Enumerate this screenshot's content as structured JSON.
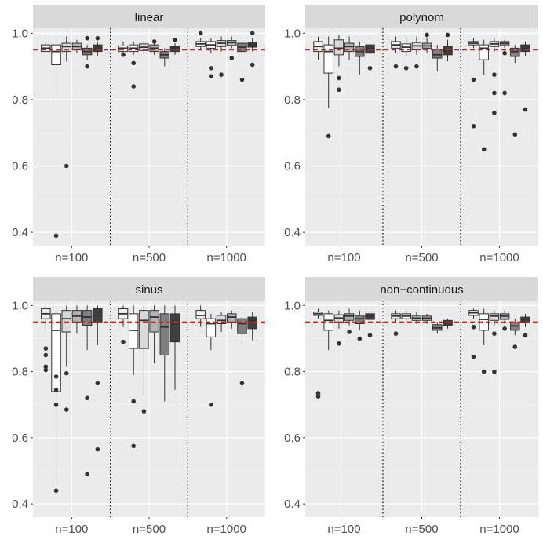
{
  "chart_data": {
    "type": "boxplot",
    "layout": "2x2 facet grid",
    "y_breaks": [
      "0.4",
      "0.6",
      "0.8",
      "1.0"
    ],
    "ylim": [
      0.36,
      1.015
    ],
    "reference_line": {
      "y": 0.95,
      "style": "dashed",
      "color": "#dd1c1c"
    },
    "box_fills": [
      "#f2f2f2",
      "#ffffff",
      "#d9d9d9",
      "#b3b3b3",
      "#7f7f7f",
      "#3f3f3f"
    ],
    "sample_sizes": [
      "n=100",
      "n=500",
      "n=1000"
    ],
    "panels": [
      {
        "title": "linear",
        "groups": [
          {
            "label": "n=100",
            "boxes": [
              {
                "q1": 0.945,
                "med": 0.955,
                "q3": 0.965,
                "lo": 0.94,
                "hi": 0.975,
                "out": []
              },
              {
                "q1": 0.905,
                "med": 0.945,
                "q3": 0.965,
                "lo": 0.815,
                "hi": 0.985,
                "out": [
                  0.39
                ]
              },
              {
                "q1": 0.945,
                "med": 0.96,
                "q3": 0.97,
                "lo": 0.915,
                "hi": 0.99,
                "out": [
                  0.6
                ]
              },
              {
                "q1": 0.95,
                "med": 0.96,
                "q3": 0.97,
                "lo": 0.94,
                "hi": 0.98,
                "out": []
              },
              {
                "q1": 0.935,
                "med": 0.945,
                "q3": 0.955,
                "lo": 0.92,
                "hi": 0.965,
                "out": [
                  0.985,
                  0.9
                ]
              },
              {
                "q1": 0.945,
                "med": 0.955,
                "q3": 0.965,
                "lo": 0.93,
                "hi": 0.975,
                "out": [
                  0.985
                ]
              }
            ]
          },
          {
            "label": "n=500",
            "boxes": [
              {
                "q1": 0.945,
                "med": 0.955,
                "q3": 0.962,
                "lo": 0.935,
                "hi": 0.975,
                "out": [
                  0.935
                ]
              },
              {
                "q1": 0.945,
                "med": 0.955,
                "q3": 0.965,
                "lo": 0.935,
                "hi": 0.975,
                "out": [
                  0.91,
                  0.84
                ]
              },
              {
                "q1": 0.948,
                "med": 0.958,
                "q3": 0.968,
                "lo": 0.935,
                "hi": 0.978,
                "out": []
              },
              {
                "q1": 0.945,
                "med": 0.955,
                "q3": 0.965,
                "lo": 0.935,
                "hi": 0.975,
                "out": [
                  0.975
                ]
              },
              {
                "q1": 0.925,
                "med": 0.935,
                "q3": 0.945,
                "lo": 0.9,
                "hi": 0.955,
                "out": []
              },
              {
                "q1": 0.945,
                "med": 0.955,
                "q3": 0.96,
                "lo": 0.935,
                "hi": 0.97,
                "out": [
                  0.98
                ]
              }
            ]
          },
          {
            "label": "n=1000",
            "boxes": [
              {
                "q1": 0.96,
                "med": 0.968,
                "q3": 0.975,
                "lo": 0.95,
                "hi": 0.985,
                "out": [
                  1.0
                ]
              },
              {
                "q1": 0.955,
                "med": 0.965,
                "q3": 0.975,
                "lo": 0.94,
                "hi": 0.985,
                "out": [
                  0.895,
                  0.87
                ]
              },
              {
                "q1": 0.96,
                "med": 0.97,
                "q3": 0.978,
                "lo": 0.945,
                "hi": 0.99,
                "out": [
                  0.875
                ]
              },
              {
                "q1": 0.963,
                "med": 0.972,
                "q3": 0.978,
                "lo": 0.955,
                "hi": 0.99,
                "out": [
                  0.925
                ]
              },
              {
                "q1": 0.945,
                "med": 0.958,
                "q3": 0.97,
                "lo": 0.93,
                "hi": 0.985,
                "out": [
                  0.86
                ]
              },
              {
                "q1": 0.958,
                "med": 0.965,
                "q3": 0.972,
                "lo": 0.945,
                "hi": 0.985,
                "out": [
                  0.905,
                  1.0
                ]
              }
            ]
          }
        ]
      },
      {
        "title": "polynom",
        "groups": [
          {
            "label": "n=100",
            "boxes": [
              {
                "q1": 0.945,
                "med": 0.96,
                "q3": 0.975,
                "lo": 0.92,
                "hi": 0.99,
                "out": []
              },
              {
                "q1": 0.88,
                "med": 0.945,
                "q3": 0.965,
                "lo": 0.775,
                "hi": 0.99,
                "out": [
                  0.69
                ]
              },
              {
                "q1": 0.935,
                "med": 0.955,
                "q3": 0.98,
                "lo": 0.9,
                "hi": 0.995,
                "out": [
                  0.865,
                  0.83
                ]
              },
              {
                "q1": 0.945,
                "med": 0.96,
                "q3": 0.97,
                "lo": 0.92,
                "hi": 0.99,
                "out": []
              },
              {
                "q1": 0.93,
                "med": 0.945,
                "q3": 0.96,
                "lo": 0.875,
                "hi": 0.975,
                "out": []
              },
              {
                "q1": 0.94,
                "med": 0.955,
                "q3": 0.965,
                "lo": 0.92,
                "hi": 0.985,
                "out": [
                  0.895
                ]
              }
            ]
          },
          {
            "label": "n=500",
            "boxes": [
              {
                "q1": 0.955,
                "med": 0.965,
                "q3": 0.975,
                "lo": 0.94,
                "hi": 0.99,
                "out": [
                  0.9
                ]
              },
              {
                "q1": 0.945,
                "med": 0.958,
                "q3": 0.968,
                "lo": 0.93,
                "hi": 0.985,
                "out": [
                  0.895
                ]
              },
              {
                "q1": 0.95,
                "med": 0.962,
                "q3": 0.972,
                "lo": 0.935,
                "hi": 0.99,
                "out": [
                  0.9
                ]
              },
              {
                "q1": 0.955,
                "med": 0.962,
                "q3": 0.97,
                "lo": 0.94,
                "hi": 0.985,
                "out": [
                  0.995
                ]
              },
              {
                "q1": 0.925,
                "med": 0.935,
                "q3": 0.952,
                "lo": 0.885,
                "hi": 0.965,
                "out": []
              },
              {
                "q1": 0.935,
                "med": 0.948,
                "q3": 0.96,
                "lo": 0.915,
                "hi": 0.98,
                "out": [
                  0.995
                ]
              }
            ]
          },
          {
            "label": "n=1000",
            "boxes": [
              {
                "q1": 0.965,
                "med": 0.97,
                "q3": 0.975,
                "lo": 0.955,
                "hi": 0.985,
                "out": [
                  0.86,
                  0.72
                ]
              },
              {
                "q1": 0.92,
                "med": 0.955,
                "q3": 0.965,
                "lo": 0.875,
                "hi": 0.98,
                "out": [
                  0.65
                ]
              },
              {
                "q1": 0.96,
                "med": 0.968,
                "q3": 0.975,
                "lo": 0.945,
                "hi": 0.985,
                "out": [
                  0.875,
                  0.82,
                  0.76
                ]
              },
              {
                "q1": 0.965,
                "med": 0.97,
                "q3": 0.975,
                "lo": 0.955,
                "hi": 0.98,
                "out": [
                  0.82,
                  0.94
                ]
              },
              {
                "q1": 0.93,
                "med": 0.945,
                "q3": 0.955,
                "lo": 0.91,
                "hi": 0.965,
                "out": [
                  0.695
                ]
              },
              {
                "q1": 0.945,
                "med": 0.955,
                "q3": 0.965,
                "lo": 0.93,
                "hi": 0.975,
                "out": [
                  0.77
                ]
              }
            ]
          }
        ]
      },
      {
        "title": "sinus",
        "groups": [
          {
            "label": "n=100",
            "boxes": [
              {
                "q1": 0.96,
                "med": 0.975,
                "q3": 0.99,
                "lo": 0.93,
                "hi": 1.0,
                "out": [
                  0.87,
                  0.85,
                  0.815,
                  0.805
                ]
              },
              {
                "q1": 0.74,
                "med": 0.925,
                "q3": 0.975,
                "lo": 0.455,
                "hi": 1.0,
                "out": [
                  0.785,
                  0.745,
                  0.7,
                  0.44
                ]
              },
              {
                "q1": 0.92,
                "med": 0.96,
                "q3": 0.985,
                "lo": 0.815,
                "hi": 1.0,
                "out": [
                  0.795,
                  0.685
                ]
              },
              {
                "q1": 0.95,
                "med": 0.968,
                "q3": 0.985,
                "lo": 0.915,
                "hi": 1.0,
                "out": []
              },
              {
                "q1": 0.94,
                "med": 0.965,
                "q3": 0.985,
                "lo": 0.865,
                "hi": 1.0,
                "out": [
                  0.72,
                  0.49
                ]
              },
              {
                "q1": 0.95,
                "med": 0.97,
                "q3": 0.99,
                "lo": 0.88,
                "hi": 1.0,
                "out": [
                  0.765,
                  0.565
                ]
              }
            ]
          },
          {
            "label": "n=500",
            "boxes": [
              {
                "q1": 0.96,
                "med": 0.975,
                "q3": 0.99,
                "lo": 0.935,
                "hi": 1.0,
                "out": [
                  0.89
                ]
              },
              {
                "q1": 0.87,
                "med": 0.925,
                "q3": 0.975,
                "lo": 0.79,
                "hi": 1.0,
                "out": [
                  0.71,
                  0.575
                ]
              },
              {
                "q1": 0.87,
                "med": 0.955,
                "q3": 0.985,
                "lo": 0.725,
                "hi": 1.0,
                "out": [
                  0.68
                ]
              },
              {
                "q1": 0.92,
                "med": 0.965,
                "q3": 0.985,
                "lo": 0.825,
                "hi": 1.0,
                "out": []
              },
              {
                "q1": 0.85,
                "med": 0.935,
                "q3": 0.975,
                "lo": 0.71,
                "hi": 1.0,
                "out": []
              },
              {
                "q1": 0.89,
                "med": 0.945,
                "q3": 0.975,
                "lo": 0.745,
                "hi": 1.0,
                "out": []
              }
            ]
          },
          {
            "label": "n=1000",
            "boxes": [
              {
                "q1": 0.96,
                "med": 0.97,
                "q3": 0.985,
                "lo": 0.935,
                "hi": 1.0,
                "out": []
              },
              {
                "q1": 0.905,
                "med": 0.945,
                "q3": 0.96,
                "lo": 0.865,
                "hi": 0.975,
                "out": [
                  0.7
                ]
              },
              {
                "q1": 0.945,
                "med": 0.955,
                "q3": 0.97,
                "lo": 0.92,
                "hi": 0.98,
                "out": []
              },
              {
                "q1": 0.95,
                "med": 0.965,
                "q3": 0.975,
                "lo": 0.93,
                "hi": 0.985,
                "out": []
              },
              {
                "q1": 0.915,
                "med": 0.945,
                "q3": 0.96,
                "lo": 0.885,
                "hi": 0.98,
                "out": [
                  0.765
                ]
              },
              {
                "q1": 0.93,
                "med": 0.955,
                "q3": 0.965,
                "lo": 0.895,
                "hi": 0.98,
                "out": []
              }
            ]
          }
        ]
      },
      {
        "title": "non−continuous",
        "groups": [
          {
            "label": "n=100",
            "boxes": [
              {
                "q1": 0.97,
                "med": 0.975,
                "q3": 0.98,
                "lo": 0.96,
                "hi": 0.99,
                "out": [
                  0.735,
                  0.725
                ]
              },
              {
                "q1": 0.925,
                "med": 0.955,
                "q3": 0.975,
                "lo": 0.865,
                "hi": 0.985,
                "out": []
              },
              {
                "q1": 0.95,
                "med": 0.962,
                "q3": 0.972,
                "lo": 0.93,
                "hi": 0.985,
                "out": [
                  0.885
                ]
              },
              {
                "q1": 0.955,
                "med": 0.968,
                "q3": 0.975,
                "lo": 0.94,
                "hi": 0.99,
                "out": [
                  0.92
                ]
              },
              {
                "q1": 0.945,
                "med": 0.96,
                "q3": 0.97,
                "lo": 0.925,
                "hi": 0.985,
                "out": [
                  0.9
                ]
              },
              {
                "q1": 0.958,
                "med": 0.968,
                "q3": 0.975,
                "lo": 0.94,
                "hi": 0.985,
                "out": [
                  0.91
                ]
              }
            ]
          },
          {
            "label": "n=500",
            "boxes": [
              {
                "q1": 0.96,
                "med": 0.968,
                "q3": 0.975,
                "lo": 0.95,
                "hi": 0.985,
                "out": [
                  0.915
                ]
              },
              {
                "q1": 0.96,
                "med": 0.968,
                "q3": 0.975,
                "lo": 0.95,
                "hi": 0.985,
                "out": []
              },
              {
                "q1": 0.955,
                "med": 0.962,
                "q3": 0.968,
                "lo": 0.945,
                "hi": 0.98,
                "out": []
              },
              {
                "q1": 0.955,
                "med": 0.962,
                "q3": 0.968,
                "lo": 0.945,
                "hi": 0.975,
                "out": []
              },
              {
                "q1": 0.925,
                "med": 0.932,
                "q3": 0.942,
                "lo": 0.915,
                "hi": 0.95,
                "out": []
              },
              {
                "q1": 0.94,
                "med": 0.948,
                "q3": 0.955,
                "lo": 0.93,
                "hi": 0.96,
                "out": []
              }
            ]
          },
          {
            "label": "n=1000",
            "boxes": [
              {
                "q1": 0.97,
                "med": 0.978,
                "q3": 0.985,
                "lo": 0.96,
                "hi": 0.99,
                "out": [
                  0.935,
                  0.845
                ]
              },
              {
                "q1": 0.925,
                "med": 0.958,
                "q3": 0.975,
                "lo": 0.88,
                "hi": 0.99,
                "out": [
                  0.8
                ]
              },
              {
                "q1": 0.955,
                "med": 0.968,
                "q3": 0.975,
                "lo": 0.94,
                "hi": 0.985,
                "out": [
                  0.915,
                  0.8
                ]
              },
              {
                "q1": 0.958,
                "med": 0.968,
                "q3": 0.975,
                "lo": 0.945,
                "hi": 0.985,
                "out": [
                  0.93
                ]
              },
              {
                "q1": 0.925,
                "med": 0.938,
                "q3": 0.948,
                "lo": 0.91,
                "hi": 0.96,
                "out": [
                  0.875
                ]
              },
              {
                "q1": 0.948,
                "med": 0.958,
                "q3": 0.965,
                "lo": 0.935,
                "hi": 0.975,
                "out": [
                  0.91
                ]
              }
            ]
          }
        ]
      }
    ]
  }
}
